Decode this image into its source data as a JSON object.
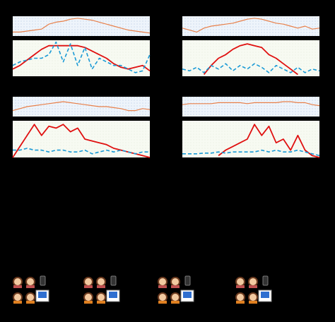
{
  "chart_data": [
    {
      "type": "line",
      "ylim": [
        0,
        1
      ],
      "series": [
        {
          "color": "#e8804a",
          "values": [
            0.2,
            0.2,
            0.25,
            0.3,
            0.35,
            0.6,
            0.7,
            0.75,
            0.85,
            0.9,
            0.85,
            0.8,
            0.7,
            0.6,
            0.5,
            0.4,
            0.3,
            0.25,
            0.2,
            0.15
          ]
        }
      ]
    },
    {
      "type": "line",
      "ylim": [
        0,
        1
      ],
      "series": [
        {
          "color": "#e01010",
          "values": [
            0.2,
            0.3,
            0.45,
            0.6,
            0.75,
            0.85,
            0.85,
            0.85,
            0.85,
            0.85,
            0.8,
            0.7,
            0.6,
            0.5,
            0.35,
            0.25,
            0.2,
            0.25,
            0.3,
            0.15
          ]
        },
        {
          "color": "#1a9ad6",
          "dashed": true,
          "values": [
            0.3,
            0.4,
            0.45,
            0.5,
            0.5,
            0.6,
            0.95,
            0.4,
            0.9,
            0.3,
            0.8,
            0.2,
            0.5,
            0.4,
            0.3,
            0.3,
            0.2,
            0.1,
            0.15,
            0.6
          ]
        }
      ]
    },
    {
      "type": "line",
      "ylim": [
        0,
        1
      ],
      "series": [
        {
          "color": "#e8804a",
          "values": [
            0.4,
            0.3,
            0.2,
            0.4,
            0.5,
            0.55,
            0.6,
            0.65,
            0.75,
            0.85,
            0.9,
            0.85,
            0.75,
            0.65,
            0.6,
            0.5,
            0.4,
            0.5,
            0.35,
            0.4
          ]
        }
      ]
    },
    {
      "type": "line",
      "ylim": [
        0,
        1
      ],
      "series": [
        {
          "color": "#e01010",
          "values": [
            null,
            null,
            null,
            0.05,
            0.3,
            0.5,
            0.6,
            0.75,
            0.85,
            0.9,
            0.85,
            0.8,
            0.6,
            0.5,
            0.35,
            0.2,
            0.05,
            null,
            null,
            null
          ]
        },
        {
          "color": "#1a9ad6",
          "dashed": true,
          "values": [
            0.2,
            0.15,
            0.25,
            0.1,
            0.3,
            0.2,
            0.35,
            0.15,
            0.3,
            0.2,
            0.35,
            0.25,
            0.1,
            0.3,
            0.2,
            0.1,
            0.25,
            0.1,
            0.2,
            0.15
          ]
        }
      ]
    },
    {
      "type": "line",
      "ylim": [
        0,
        1
      ],
      "series": [
        {
          "color": "#e8804a",
          "values": [
            0.3,
            0.4,
            0.5,
            0.55,
            0.6,
            0.65,
            0.7,
            0.75,
            0.7,
            0.65,
            0.6,
            0.55,
            0.5,
            0.5,
            0.45,
            0.4,
            0.3,
            0.3,
            0.4,
            0.35
          ]
        }
      ]
    },
    {
      "type": "line",
      "ylim": [
        0,
        1
      ],
      "series": [
        {
          "color": "#e01010",
          "values": [
            0.0,
            0.3,
            0.6,
            0.9,
            0.6,
            0.85,
            0.8,
            0.9,
            0.7,
            0.8,
            0.5,
            0.45,
            0.4,
            0.35,
            0.25,
            0.2,
            0.15,
            0.1,
            0.05,
            0.0
          ]
        },
        {
          "color": "#1a9ad6",
          "dashed": true,
          "values": [
            0.2,
            0.2,
            0.25,
            0.2,
            0.2,
            0.15,
            0.2,
            0.2,
            0.15,
            0.15,
            0.2,
            0.1,
            0.15,
            0.2,
            0.15,
            0.2,
            0.15,
            0.1,
            0.15,
            0.15
          ]
        }
      ]
    },
    {
      "type": "line",
      "ylim": [
        0,
        1
      ],
      "series": [
        {
          "color": "#e8804a",
          "values": [
            0.6,
            0.65,
            0.65,
            0.65,
            0.65,
            0.7,
            0.7,
            0.7,
            0.7,
            0.65,
            0.7,
            0.7,
            0.7,
            0.7,
            0.75,
            0.75,
            0.7,
            0.7,
            0.6,
            0.55
          ]
        }
      ]
    },
    {
      "type": "line",
      "ylim": [
        0,
        1
      ],
      "series": [
        {
          "color": "#e01010",
          "values": [
            null,
            null,
            null,
            null,
            null,
            0.05,
            0.2,
            0.3,
            0.4,
            0.5,
            0.9,
            0.6,
            0.85,
            0.4,
            0.5,
            0.2,
            0.6,
            0.2,
            0.05,
            0.0
          ]
        },
        {
          "color": "#1a9ad6",
          "dashed": true,
          "values": [
            0.1,
            0.1,
            0.1,
            0.12,
            0.12,
            0.15,
            0.12,
            0.15,
            0.15,
            0.15,
            0.15,
            0.2,
            0.15,
            0.2,
            0.15,
            0.15,
            0.2,
            0.15,
            0.1,
            0.05
          ]
        }
      ]
    }
  ]
}
